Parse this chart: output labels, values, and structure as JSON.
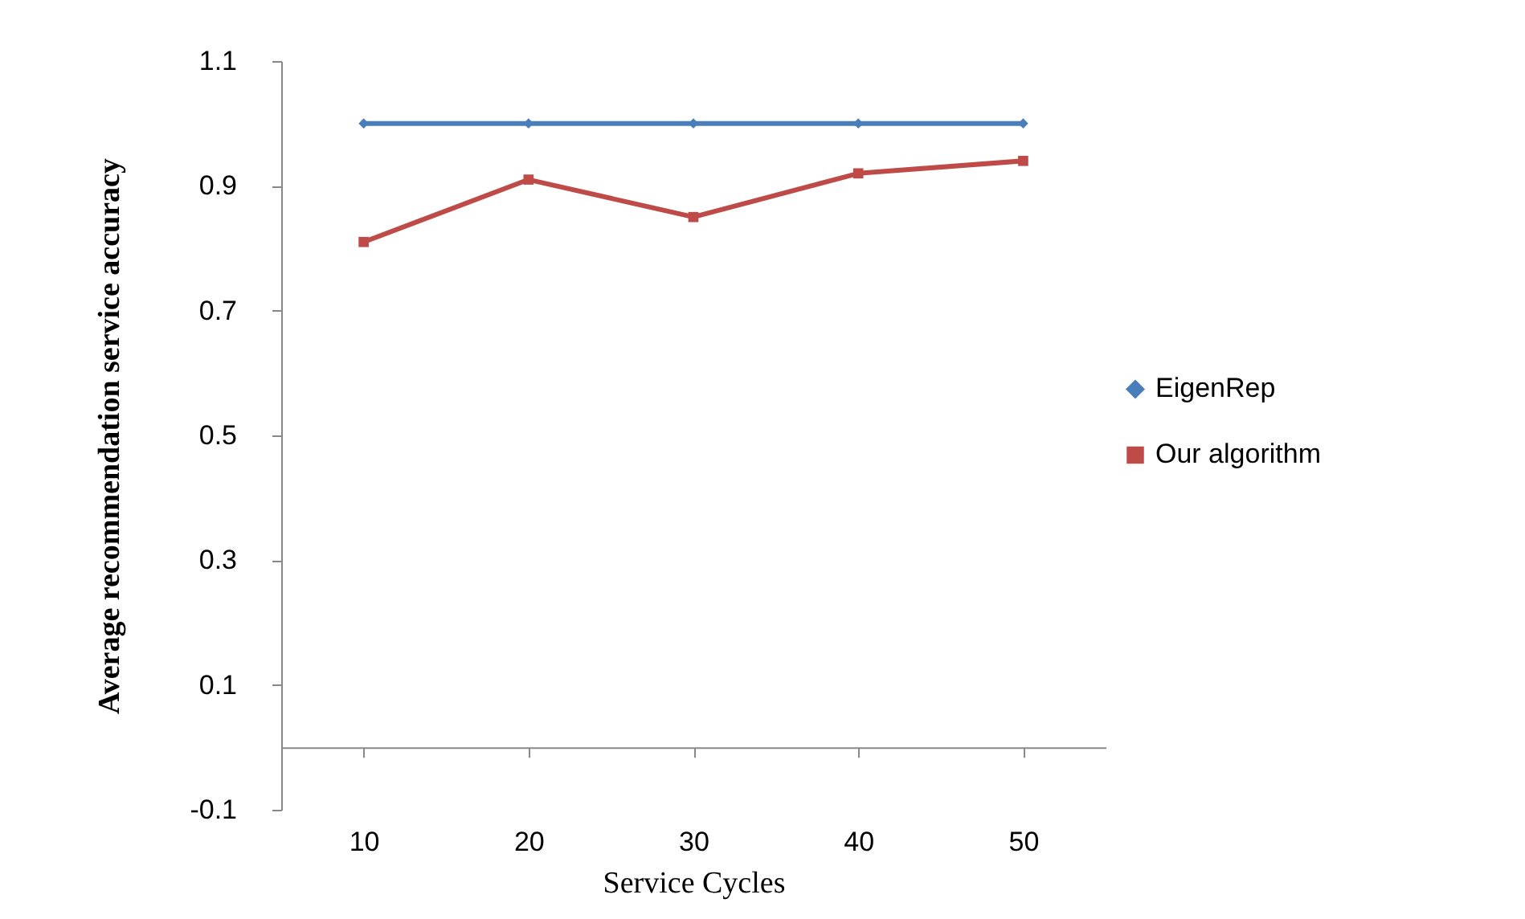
{
  "chart_data": {
    "type": "line",
    "xlabel": "Service Cycles",
    "ylabel": "Average recommendation service accuracy",
    "categories": [
      "10",
      "20",
      "30",
      "40",
      "50"
    ],
    "series": [
      {
        "name": "EigenRep",
        "color": "#4a7ebb",
        "marker": "diamond",
        "values": [
          1,
          1,
          1,
          1,
          1
        ]
      },
      {
        "name": "Our algorithm",
        "color": "#be4b48",
        "marker": "square",
        "values": [
          0.81,
          0.91,
          0.85,
          0.92,
          0.94
        ]
      }
    ],
    "ylim": [
      -0.1,
      1.1
    ],
    "yticks": [
      -0.1,
      0.1,
      0.3,
      0.5,
      0.7,
      0.9,
      1.1
    ],
    "grid": false,
    "legend": "right",
    "line_style": "solid"
  }
}
